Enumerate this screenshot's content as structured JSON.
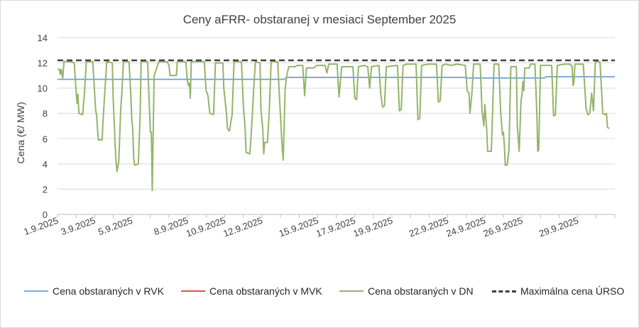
{
  "chart_data": {
    "type": "line",
    "title": "Ceny aFRR- obstaranej v mesiaci September 2025",
    "xlabel": "",
    "ylabel": "Cena (€/ MW)",
    "ylim": [
      0,
      14
    ],
    "yticks": [
      "0",
      "2",
      "4",
      "6",
      "8",
      "10",
      "12",
      "14"
    ],
    "xticks": [
      "1.9.2025",
      "3.9.2025",
      "5.9.2025",
      "8.9.2025",
      "10.9.2025",
      "12.9.2025",
      "15.9.2025",
      "17.9.2025",
      "19.9.2025",
      "22.9.2025",
      "24.9.2025",
      "26.9.2025",
      "29.9.2025"
    ],
    "xtick_days": [
      1,
      3,
      5,
      8,
      10,
      12,
      15,
      17,
      19,
      22,
      24,
      26,
      29
    ],
    "xlim_days": [
      1,
      31
    ],
    "grid": "horizontal",
    "legend_position": "bottom",
    "series": [
      {
        "name": "Cena obstaraných v RVK",
        "color": "#7faadb",
        "style": "solid",
        "points": [
          [
            1,
            10.7
          ],
          [
            13.2,
            10.7
          ],
          [
            13.35,
            10.85
          ],
          [
            23,
            10.85
          ],
          [
            23.1,
            10.8
          ],
          [
            27.2,
            10.8
          ],
          [
            27.3,
            10.9
          ],
          [
            31,
            10.9
          ]
        ]
      },
      {
        "name": "Cena obstaraných v MVK",
        "color": "#e05050",
        "style": "solid",
        "points": []
      },
      {
        "name": "Cena obstaraných v DN",
        "color": "#93b46b",
        "style": "solid",
        "points": [
          [
            1.0,
            11.5
          ],
          [
            1.1,
            11.5
          ],
          [
            1.15,
            11.1
          ],
          [
            1.2,
            11.5
          ],
          [
            1.28,
            10.8
          ],
          [
            1.35,
            12.1
          ],
          [
            1.7,
            12.1
          ],
          [
            1.9,
            12.0
          ],
          [
            2.0,
            9.8
          ],
          [
            2.05,
            8.8
          ],
          [
            2.1,
            9.5
          ],
          [
            2.15,
            8.0
          ],
          [
            2.35,
            7.9
          ],
          [
            2.45,
            9.6
          ],
          [
            2.55,
            12.1
          ],
          [
            2.9,
            12.1
          ],
          [
            3.0,
            9.6
          ],
          [
            3.05,
            8.3
          ],
          [
            3.1,
            7.9
          ],
          [
            3.15,
            6.8
          ],
          [
            3.2,
            5.9
          ],
          [
            3.4,
            5.9
          ],
          [
            3.45,
            7.4
          ],
          [
            3.55,
            9.8
          ],
          [
            3.65,
            12.1
          ],
          [
            3.95,
            12.0
          ],
          [
            4.0,
            9.0
          ],
          [
            4.05,
            7.4
          ],
          [
            4.1,
            5.5
          ],
          [
            4.15,
            4.2
          ],
          [
            4.2,
            3.4
          ],
          [
            4.3,
            4.2
          ],
          [
            4.4,
            8.3
          ],
          [
            4.45,
            9.3
          ],
          [
            4.55,
            12.1
          ],
          [
            4.85,
            12.1
          ],
          [
            4.95,
            9.3
          ],
          [
            5.0,
            7.5
          ],
          [
            5.05,
            6.8
          ],
          [
            5.1,
            4.5
          ],
          [
            5.15,
            3.9
          ],
          [
            5.35,
            4.0
          ],
          [
            5.45,
            8.0
          ],
          [
            5.5,
            12.1
          ],
          [
            5.85,
            12.1
          ],
          [
            6.0,
            6.5
          ],
          [
            6.05,
            6.5
          ],
          [
            6.1,
            1.9
          ],
          [
            6.2,
            11.0
          ],
          [
            6.3,
            11.4
          ],
          [
            6.45,
            12.1
          ],
          [
            6.9,
            12.1
          ],
          [
            7.0,
            11.8
          ],
          [
            7.05,
            11.0
          ],
          [
            7.4,
            11.0
          ],
          [
            7.45,
            12.1
          ],
          [
            7.9,
            12.1
          ],
          [
            8.0,
            10.5
          ],
          [
            8.05,
            10.2
          ],
          [
            8.1,
            10.4
          ],
          [
            8.15,
            9.2
          ],
          [
            8.2,
            12.1
          ],
          [
            8.9,
            12.1
          ],
          [
            9.0,
            9.8
          ],
          [
            9.1,
            9.4
          ],
          [
            9.2,
            8.0
          ],
          [
            9.4,
            7.9
          ],
          [
            9.5,
            12.0
          ],
          [
            9.9,
            12.0
          ],
          [
            9.95,
            10.0
          ],
          [
            10.05,
            8.6
          ],
          [
            10.1,
            7.9
          ],
          [
            10.15,
            6.8
          ],
          [
            10.25,
            6.6
          ],
          [
            10.4,
            7.9
          ],
          [
            10.5,
            12.1
          ],
          [
            10.9,
            12.1
          ],
          [
            11.0,
            8.7
          ],
          [
            11.1,
            6.8
          ],
          [
            11.15,
            4.9
          ],
          [
            11.35,
            4.8
          ],
          [
            11.45,
            6.9
          ],
          [
            11.55,
            9.7
          ],
          [
            11.65,
            12.1
          ],
          [
            11.9,
            12.0
          ],
          [
            11.95,
            8.3
          ],
          [
            12.05,
            6.8
          ],
          [
            12.1,
            4.8
          ],
          [
            12.15,
            5.7
          ],
          [
            12.3,
            5.7
          ],
          [
            12.4,
            8.3
          ],
          [
            12.5,
            12.1
          ],
          [
            12.85,
            12.1
          ],
          [
            12.95,
            9.2
          ],
          [
            13.05,
            6.5
          ],
          [
            13.1,
            5.2
          ],
          [
            13.15,
            4.3
          ],
          [
            13.25,
            9.9
          ],
          [
            13.35,
            11.1
          ],
          [
            13.45,
            11.7
          ],
          [
            13.8,
            11.7
          ],
          [
            13.9,
            11.8
          ],
          [
            14.2,
            11.8
          ],
          [
            14.3,
            9.4
          ],
          [
            14.4,
            11.6
          ],
          [
            14.8,
            11.6
          ],
          [
            14.95,
            11.8
          ],
          [
            15.4,
            11.8
          ],
          [
            15.5,
            11.2
          ],
          [
            15.6,
            11.9
          ],
          [
            16.05,
            11.9
          ],
          [
            16.15,
            9.3
          ],
          [
            16.3,
            11.7
          ],
          [
            16.9,
            11.7
          ],
          [
            17.0,
            9.2
          ],
          [
            17.1,
            9.1
          ],
          [
            17.2,
            11.7
          ],
          [
            17.5,
            11.8
          ],
          [
            17.7,
            11.7
          ],
          [
            17.8,
            10.0
          ],
          [
            17.9,
            11.7
          ],
          [
            18.3,
            11.8
          ],
          [
            18.4,
            9.5
          ],
          [
            18.5,
            8.5
          ],
          [
            18.6,
            8.6
          ],
          [
            18.7,
            11.7
          ],
          [
            19.3,
            11.8
          ],
          [
            19.4,
            8.2
          ],
          [
            19.5,
            8.3
          ],
          [
            19.6,
            11.8
          ],
          [
            19.8,
            11.9
          ],
          [
            20.3,
            11.9
          ],
          [
            20.4,
            7.5
          ],
          [
            20.5,
            7.6
          ],
          [
            20.6,
            11.8
          ],
          [
            20.95,
            11.9
          ],
          [
            21.4,
            11.9
          ],
          [
            21.5,
            8.9
          ],
          [
            21.6,
            9.0
          ],
          [
            21.7,
            11.8
          ],
          [
            21.9,
            11.9
          ],
          [
            22.2,
            11.8
          ],
          [
            22.5,
            11.9
          ],
          [
            22.95,
            11.8
          ],
          [
            23.05,
            9.8
          ],
          [
            23.15,
            9.6
          ],
          [
            23.2,
            8.0
          ],
          [
            23.3,
            9.5
          ],
          [
            23.4,
            11.9
          ],
          [
            23.75,
            11.9
          ],
          [
            23.85,
            8.2
          ],
          [
            23.95,
            7.0
          ],
          [
            24.0,
            8.7
          ],
          [
            24.1,
            6.8
          ],
          [
            24.15,
            5.0
          ],
          [
            24.35,
            5.0
          ],
          [
            24.5,
            11.9
          ],
          [
            24.75,
            11.9
          ],
          [
            24.85,
            8.2
          ],
          [
            24.95,
            6.3
          ],
          [
            25.0,
            6.5
          ],
          [
            25.05,
            5.5
          ],
          [
            25.1,
            3.9
          ],
          [
            25.2,
            3.9
          ],
          [
            25.3,
            5.1
          ],
          [
            25.4,
            11.7
          ],
          [
            25.7,
            11.7
          ],
          [
            25.75,
            7.0
          ],
          [
            25.85,
            5.0
          ],
          [
            25.95,
            9.0
          ],
          [
            26.0,
            9.5
          ],
          [
            26.05,
            10.5
          ],
          [
            26.1,
            9.8
          ],
          [
            26.15,
            11.6
          ],
          [
            26.4,
            11.6
          ],
          [
            26.45,
            11.9
          ],
          [
            26.7,
            11.9
          ],
          [
            26.8,
            8.0
          ],
          [
            26.85,
            5.0
          ],
          [
            26.9,
            5.1
          ],
          [
            27.0,
            11.8
          ],
          [
            27.6,
            11.8
          ],
          [
            27.7,
            7.8
          ],
          [
            27.8,
            7.9
          ],
          [
            27.9,
            11.8
          ],
          [
            28.3,
            11.9
          ],
          [
            28.6,
            11.9
          ],
          [
            28.7,
            11.7
          ],
          [
            28.75,
            10.2
          ],
          [
            28.8,
            10.5
          ],
          [
            28.85,
            11.9
          ],
          [
            29.3,
            11.9
          ],
          [
            29.45,
            8.4
          ],
          [
            29.55,
            7.9
          ],
          [
            29.65,
            8.0
          ],
          [
            29.75,
            9.6
          ],
          [
            29.85,
            8.2
          ],
          [
            29.95,
            12.1
          ],
          [
            30.2,
            12.1
          ],
          [
            30.35,
            8.0
          ],
          [
            30.45,
            7.9
          ],
          [
            30.55,
            8.0
          ],
          [
            30.6,
            6.9
          ],
          [
            30.7,
            6.8
          ]
        ]
      },
      {
        "name": "Maximálna cena ÚRSO",
        "color": "#404040",
        "style": "dashed",
        "points": [
          [
            1,
            12.2
          ],
          [
            31,
            12.2
          ]
        ]
      }
    ]
  }
}
